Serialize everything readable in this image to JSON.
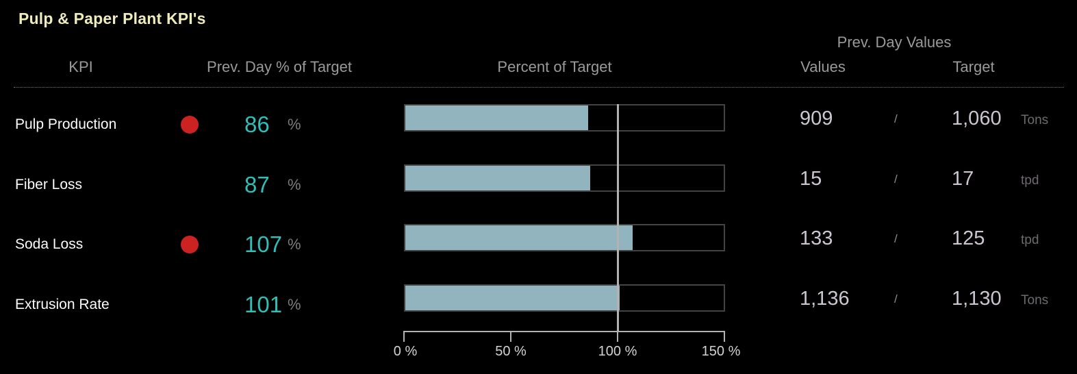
{
  "title": "Pulp & Paper Plant KPI's",
  "columns": {
    "kpi": "KPI",
    "prev_day_pct": "Prev. Day % of Target",
    "percent_of_target": "Percent of Target",
    "prev_day_values": "Prev. Day Values",
    "values": "Values",
    "target": "Target"
  },
  "rows": [
    {
      "name": "Pulp Production",
      "alarm": true,
      "pct": 86,
      "pct_unit": "%",
      "value": "909",
      "sep": "/",
      "target": "1,060",
      "unit": "Tons"
    },
    {
      "name": "Fiber Loss",
      "alarm": false,
      "pct": 87,
      "pct_unit": "%",
      "value": "15",
      "sep": "/",
      "target": "17",
      "unit": "tpd"
    },
    {
      "name": "Soda Loss",
      "alarm": true,
      "pct": 107,
      "pct_unit": "%",
      "value": "133",
      "sep": "/",
      "target": "125",
      "unit": "tpd"
    },
    {
      "name": "Extrusion Rate",
      "alarm": false,
      "pct": 101,
      "pct_unit": "%",
      "value": "1,136",
      "sep": "/",
      "target": "1,130",
      "unit": "Tons"
    }
  ],
  "axis": {
    "min": 0,
    "max": 150,
    "reference": 100,
    "ticks": [
      "0 %",
      "50 %",
      "100 %",
      "150 %"
    ]
  },
  "colors": {
    "background": "#000000",
    "title": "#f0ebbd",
    "header_text": "#9a9a9a",
    "kpi_text": "#fbfbfb",
    "pct_accent": "#2ebfb7",
    "alarm_red": "#cc2222",
    "bar_fill": "#92b4bf",
    "bar_border": "#434343",
    "reference_line": "#b2b2b2",
    "value_text": "#cdc6d2",
    "unit_text": "#6e6a70"
  },
  "chart_data": {
    "type": "bar",
    "orientation": "horizontal",
    "title": "Pulp & Paper Plant KPI's",
    "categories": [
      "Pulp Production",
      "Fiber Loss",
      "Soda Loss",
      "Extrusion Rate"
    ],
    "values": [
      86,
      87,
      107,
      101
    ],
    "xlabel": "Percent of Target",
    "ylabel": "KPI",
    "xlim": [
      0,
      150
    ],
    "x_ticks": [
      0,
      50,
      100,
      150
    ],
    "x_tick_labels": [
      "0 %",
      "50 %",
      "100 %",
      "150 %"
    ],
    "reference_line": 100,
    "grid": false,
    "legend": false,
    "series": [
      {
        "name": "Prev. Day % of Target",
        "values": [
          86,
          87,
          107,
          101
        ]
      },
      {
        "name": "Prev. Day Values",
        "values": [
          909,
          15,
          133,
          1136
        ]
      },
      {
        "name": "Target",
        "values": [
          1060,
          17,
          125,
          1130
        ]
      }
    ],
    "units": [
      "Tons",
      "tpd",
      "tpd",
      "Tons"
    ],
    "alarm_flags": [
      true,
      false,
      true,
      false
    ]
  }
}
